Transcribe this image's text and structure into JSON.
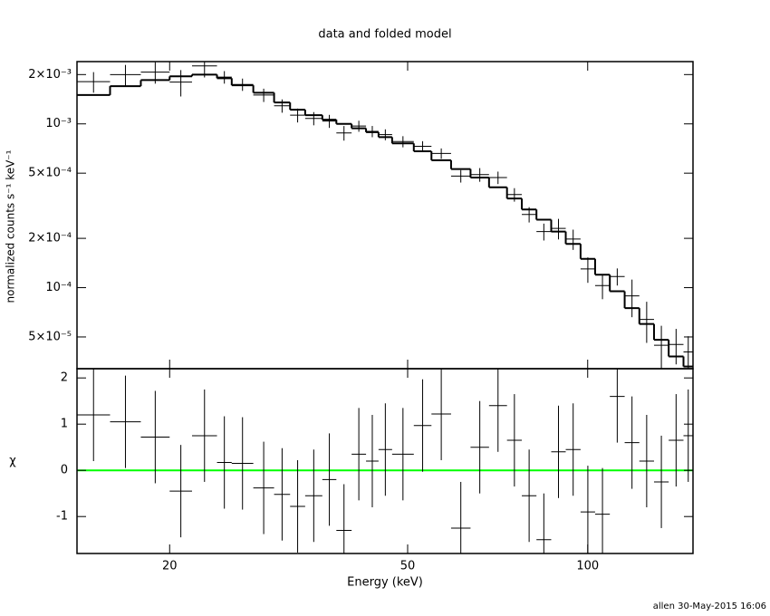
{
  "chart_data": {
    "type": "spectrum",
    "title": "data and folded model",
    "xlabel": "Energy (keV)",
    "xscale": "log",
    "xlim": [
      14,
      150
    ],
    "xticks": [
      20,
      50,
      100
    ],
    "bins": [
      14,
      15.9,
      17.9,
      20,
      21.8,
      24,
      25.4,
      27.6,
      29.9,
      31.8,
      33.7,
      36,
      38,
      40.3,
      42.6,
      44.7,
      47.1,
      51.2,
      54.8,
      59.1,
      63.7,
      68.4,
      73.3,
      77.6,
      82.1,
      86.9,
      91.9,
      97.3,
      102.9,
      108.9,
      115.3,
      122,
      129.1,
      136.6,
      144.6,
      150
    ],
    "ylabel": "normalized counts s⁻¹ keV⁻¹",
    "yscale": "log",
    "ylim": [
      3.2e-05,
      0.0024
    ],
    "yticks": [
      {
        "value": 5e-05,
        "label": "5×10⁻⁵"
      },
      {
        "value": 0.0001,
        "label": "10⁻⁴"
      },
      {
        "value": 0.0002,
        "label": "2×10⁻⁴"
      },
      {
        "value": 0.0005,
        "label": "5×10⁻⁴"
      },
      {
        "value": 0.001,
        "label": "10⁻³"
      },
      {
        "value": 0.002,
        "label": "2×10⁻³"
      }
    ],
    "data": {
      "color": "#000000",
      "values": [
        0.00181,
        0.002,
        0.00207,
        0.0018,
        0.00226,
        0.00193,
        0.00174,
        0.0015,
        0.00129,
        0.00113,
        0.00108,
        0.00104,
        0.00088,
        0.00097,
        0.0009,
        0.00086,
        0.00078,
        0.00073,
        0.00066,
        0.00048,
        0.00049,
        0.00047,
        0.00037,
        0.00028,
        0.00022,
        0.00023,
        0.000198,
        0.00013,
        0.000103,
        0.000117,
        8.9e-05,
        6.4e-05,
        4.45e-05,
        4.5e-05,
        4.05e-05
      ],
      "errors": [
        0.00026,
        0.00029,
        0.00031,
        0.00033,
        0.00034,
        0.00017,
        0.00015,
        0.00014,
        0.00012,
        0.00011,
        0.0001,
        9.5e-05,
        9e-05,
        7.5e-05,
        7.1e-05,
        6.6e-05,
        6.1e-05,
        5.4e-05,
        4.8e-05,
        4.2e-05,
        4.7e-05,
        4.1e-05,
        3.5e-05,
        3e-05,
        2.6e-05,
        3.3e-05,
        2.8e-05,
        2.3e-05,
        1.8e-05,
        1.4e-05,
        2.3e-05,
        1.8e-05,
        1.4e-05,
        1.1e-05,
        1e-05
      ]
    },
    "model": {
      "color": "#000000",
      "values": [
        0.0015,
        0.0017,
        0.00185,
        0.00195,
        0.002,
        0.0019,
        0.00172,
        0.00155,
        0.00135,
        0.00122,
        0.00113,
        0.00106,
        0.001,
        0.00094,
        0.00089,
        0.00083,
        0.00076,
        0.00068,
        0.0006,
        0.00053,
        0.00047,
        0.00041,
        0.00035,
        0.0003,
        0.00026,
        0.00022,
        0.000185,
        0.00015,
        0.00012,
        9.5e-05,
        7.5e-05,
        6e-05,
        4.8e-05,
        3.8e-05,
        3.3e-05
      ]
    },
    "residual_ylabel": "χ",
    "residual_ylim": [
      -1.8,
      2.2
    ],
    "residual_yticks": [
      -1,
      0,
      1,
      2
    ],
    "residuals": {
      "color": "#000000",
      "values": [
        1.2,
        1.05,
        0.72,
        -0.45,
        0.75,
        0.17,
        0.15,
        -0.38,
        -0.52,
        -0.78,
        -0.55,
        -0.2,
        -1.3,
        0.35,
        0.2,
        0.45,
        0.35,
        0.97,
        1.22,
        -1.25,
        0.5,
        1.4,
        0.65,
        -0.55,
        -1.5,
        0.4,
        0.45,
        -0.9,
        -0.95,
        1.6,
        0.6,
        0.2,
        -0.25,
        0.65,
        0.75
      ],
      "errors": [
        1,
        1,
        1,
        1,
        1,
        1,
        1,
        1,
        1,
        1,
        1,
        1,
        1,
        1,
        1,
        1,
        1,
        1,
        1,
        1,
        1,
        1,
        1,
        1,
        1,
        1,
        1,
        1,
        1,
        1,
        1,
        1,
        1,
        1,
        1
      ]
    },
    "zero_line": {
      "value": 0,
      "color": "#00ff00"
    }
  },
  "footer": "allen 30-May-2015 16:06"
}
